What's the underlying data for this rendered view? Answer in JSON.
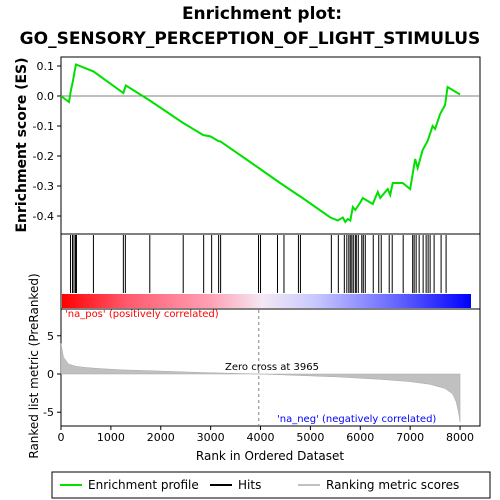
{
  "chart_data": {
    "type": "line",
    "title_line1": "Enrichment plot:",
    "title_line2": "GO_SENSORY_PERCEPTION_OF_LIGHT_STIMULUS",
    "xlabel": "Rank in Ordered Dataset",
    "ylabel_top": "Enrichment score (ES)",
    "ylabel_bottom": "Ranked list metric (PreRanked)",
    "xlim": [
      0,
      8400
    ],
    "x_ticks": [
      0,
      1000,
      2000,
      3000,
      4000,
      5000,
      6000,
      7000,
      8000
    ],
    "es_ylim": [
      -0.46,
      0.13
    ],
    "es_y_ticks": [
      0.1,
      0.0,
      -0.1,
      -0.2,
      -0.3,
      -0.4
    ],
    "metric_ylim": [
      -6.8,
      8.5
    ],
    "metric_y_ticks": [
      5,
      0,
      -5
    ],
    "grid": false,
    "legend_position": "bottom",
    "colors": {
      "es_line": "#00e000",
      "hits": "#000000",
      "metric": "#c0c0c0",
      "pos_label": "#ff0000",
      "neg_label": "#0000ff",
      "zero_line": "#808080"
    },
    "series": [
      {
        "name": "Enrichment profile",
        "x": [
          0,
          160,
          200,
          240,
          270,
          300,
          650,
          1250,
          1300,
          1780,
          2450,
          2850,
          3000,
          3150,
          3200,
          3965,
          4350,
          4750,
          4800,
          5400,
          5550,
          5650,
          5700,
          5750,
          5800,
          5850,
          5900,
          6000,
          6050,
          6250,
          6350,
          6400,
          6550,
          6600,
          6650,
          6850,
          7000,
          7050,
          7100,
          7150,
          7250,
          7350,
          7450,
          7500,
          7600,
          7700,
          7750,
          8000
        ],
        "y": [
          0.0,
          -0.02,
          0.02,
          0.05,
          0.08,
          0.105,
          0.082,
          0.01,
          0.035,
          -0.015,
          -0.09,
          -0.13,
          -0.135,
          -0.15,
          -0.152,
          -0.24,
          -0.285,
          -0.33,
          -0.335,
          -0.405,
          -0.415,
          -0.405,
          -0.42,
          -0.41,
          -0.415,
          -0.37,
          -0.38,
          -0.355,
          -0.34,
          -0.36,
          -0.32,
          -0.34,
          -0.31,
          -0.33,
          -0.29,
          -0.29,
          -0.31,
          -0.26,
          -0.21,
          -0.24,
          -0.18,
          -0.15,
          -0.1,
          -0.11,
          -0.06,
          -0.03,
          0.03,
          0.005
        ]
      }
    ],
    "hits": [
      190,
      230,
      260,
      290,
      310,
      650,
      1250,
      1290,
      1780,
      2450,
      2860,
      3020,
      3160,
      3200,
      3960,
      4000,
      4340,
      4470,
      4760,
      4800,
      5420,
      5560,
      5680,
      5730,
      5770,
      5800,
      5830,
      5860,
      5900,
      5920,
      5960,
      6030,
      6060,
      6100,
      6260,
      6370,
      6420,
      6580,
      6640,
      6860,
      7050,
      7080,
      7120,
      7180,
      7260,
      7320,
      7360,
      7400,
      7480,
      7620,
      7720
    ],
    "ranked_metric": {
      "x": [
        0,
        50,
        150,
        300,
        500,
        800,
        1200,
        2000,
        2800,
        3965,
        4800,
        5600,
        6400,
        7000,
        7400,
        7700,
        7850,
        7920,
        7970,
        8000
      ],
      "y": [
        4.0,
        2.2,
        1.3,
        1.0,
        0.85,
        0.7,
        0.55,
        0.38,
        0.2,
        0.0,
        -0.2,
        -0.4,
        -0.7,
        -1.0,
        -1.35,
        -1.9,
        -2.6,
        -3.6,
        -5.0,
        -6.3
      ]
    },
    "zero_cross_label": "Zero cross at 3965",
    "zero_cross_x": 3965,
    "pos_label": "'na_pos' (positively correlated)",
    "neg_label": "'na_neg' (negatively correlated)",
    "legend": [
      {
        "label": "Enrichment profile",
        "style": "es_line"
      },
      {
        "label": "Hits",
        "style": "hits"
      },
      {
        "label": "Ranking metric scores",
        "style": "metric"
      }
    ]
  }
}
